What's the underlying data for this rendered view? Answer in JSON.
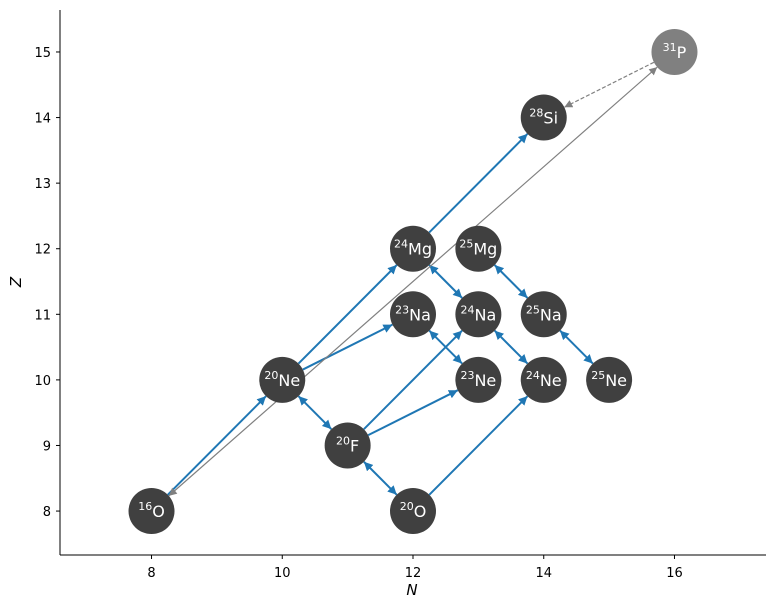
{
  "chart_data": {
    "type": "network",
    "x_label": "N",
    "y_label": "Z",
    "xlim": [
      6.6,
      17.4
    ],
    "ylim": [
      7.33,
      15.64
    ],
    "xticks": [
      8,
      10,
      12,
      14,
      16
    ],
    "yticks": [
      8,
      9,
      10,
      11,
      12,
      13,
      14,
      15
    ],
    "node_color": "#404040",
    "edge_color": "#1f77b4",
    "secondary_color": "#808080",
    "nodes": [
      {
        "n": 8,
        "z": 8,
        "mass": 16,
        "element": "O"
      },
      {
        "n": 10,
        "z": 10,
        "mass": 20,
        "element": "Ne"
      },
      {
        "n": 11,
        "z": 9,
        "mass": 20,
        "element": "F"
      },
      {
        "n": 12,
        "z": 8,
        "mass": 20,
        "element": "O"
      },
      {
        "n": 12,
        "z": 11,
        "mass": 23,
        "element": "Na"
      },
      {
        "n": 12,
        "z": 12,
        "mass": 24,
        "element": "Mg"
      },
      {
        "n": 13,
        "z": 10,
        "mass": 23,
        "element": "Ne"
      },
      {
        "n": 13,
        "z": 11,
        "mass": 24,
        "element": "Na"
      },
      {
        "n": 13,
        "z": 12,
        "mass": 25,
        "element": "Mg"
      },
      {
        "n": 14,
        "z": 10,
        "mass": 24,
        "element": "Ne"
      },
      {
        "n": 14,
        "z": 11,
        "mass": 25,
        "element": "Na"
      },
      {
        "n": 14,
        "z": 14,
        "mass": 28,
        "element": "Si"
      },
      {
        "n": 15,
        "z": 10,
        "mass": 25,
        "element": "Ne"
      },
      {
        "n": 16,
        "z": 15,
        "mass": 31,
        "element": "P",
        "secondary": true
      }
    ],
    "edges": [
      {
        "from": 0,
        "to": 1
      },
      {
        "from": 1,
        "to": 5
      },
      {
        "from": 1,
        "to": 4
      },
      {
        "from": 1,
        "to": 2,
        "both": true
      },
      {
        "from": 2,
        "to": 3,
        "both": true
      },
      {
        "from": 2,
        "to": 7
      },
      {
        "from": 2,
        "to": 6
      },
      {
        "from": 3,
        "to": 9
      },
      {
        "from": 5,
        "to": 11
      },
      {
        "from": 5,
        "to": 7,
        "both": true
      },
      {
        "from": 4,
        "to": 6,
        "both": true
      },
      {
        "from": 8,
        "to": 10,
        "both": true
      },
      {
        "from": 7,
        "to": 9,
        "both": true
      },
      {
        "from": 10,
        "to": 12,
        "both": true
      },
      {
        "from": 0,
        "to": 13,
        "both": true,
        "secondary": true
      },
      {
        "from": 13,
        "to": 11,
        "secondary": true,
        "dashed": true
      }
    ]
  }
}
